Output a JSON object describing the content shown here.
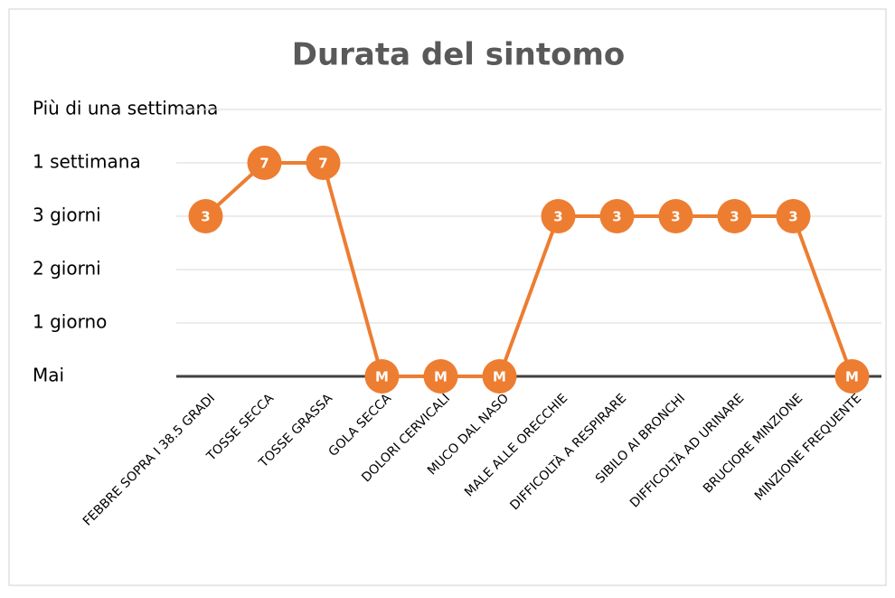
{
  "chart_data": {
    "type": "line",
    "title": "Durata del sintomo",
    "categories": [
      "FEBBRE SOPRA I 38.5 GRADI",
      "TOSSE SECCA",
      "TOSSE GRASSA",
      "GOLA SECCA",
      "DOLORI CERVICALI",
      "MUCO DAL NASO",
      "MALE ALLE ORECCHIE",
      "DIFFICOLTÀ A RESPIRARE",
      "SIBILO AI BRONCHI",
      "DIFFICOLTÀ AD URINARE",
      "BRUCIORE MINZIONE",
      "MINZIONE FREQUENTE"
    ],
    "values": [
      3,
      7,
      7,
      0,
      0,
      0,
      3,
      3,
      3,
      3,
      3,
      0
    ],
    "value_labels": [
      "3",
      "7",
      "7",
      "M",
      "M",
      "M",
      "3",
      "3",
      "3",
      "3",
      "3",
      "M"
    ],
    "color": "#ed7d31",
    "yticks": [
      {
        "value": 0,
        "label": "Mai"
      },
      {
        "value": 1,
        "label": "1 giorno"
      },
      {
        "value": 2,
        "label": "2 giorni"
      },
      {
        "value": 3,
        "label": "3 giorni"
      },
      {
        "value": 7,
        "label": "1 settimana"
      },
      {
        "value": null,
        "label": "Più di una settimana"
      }
    ],
    "grid": true
  }
}
